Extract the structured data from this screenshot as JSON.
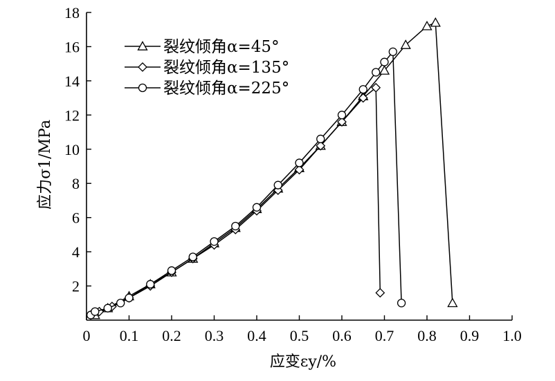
{
  "chart_data": {
    "type": "line",
    "xlabel": "应变εy/%",
    "ylabel": "应力σ1/MPa",
    "xlim": [
      0,
      1.0
    ],
    "ylim": [
      0,
      18
    ],
    "x_ticks": [
      "0",
      "0.1",
      "0.2",
      "0.3",
      "0.4",
      "0.5",
      "0.6",
      "0.7",
      "0.8",
      "0.9",
      "1.0"
    ],
    "y_ticks": [
      "2",
      "4",
      "6",
      "8",
      "10",
      "12",
      "14",
      "16",
      "18"
    ],
    "grid": false,
    "legend_position": "top-left",
    "series": [
      {
        "name": "裂纹倾角α=45°",
        "marker": "triangle",
        "x": [
          0.02,
          0.05,
          0.1,
          0.15,
          0.2,
          0.25,
          0.3,
          0.35,
          0.4,
          0.45,
          0.5,
          0.55,
          0.6,
          0.65,
          0.7,
          0.75,
          0.8,
          0.82,
          0.86
        ],
        "y": [
          0.3,
          0.7,
          1.4,
          2.1,
          2.8,
          3.6,
          4.5,
          5.4,
          6.5,
          7.7,
          8.9,
          10.2,
          11.6,
          13.1,
          14.6,
          16.1,
          17.2,
          17.4,
          1.0
        ]
      },
      {
        "name": "裂纹倾角α=135°",
        "marker": "diamond",
        "x": [
          0.01,
          0.03,
          0.06,
          0.1,
          0.15,
          0.2,
          0.25,
          0.3,
          0.35,
          0.4,
          0.45,
          0.5,
          0.55,
          0.6,
          0.65,
          0.68,
          0.69
        ],
        "y": [
          0.3,
          0.5,
          0.8,
          1.3,
          2.0,
          2.8,
          3.6,
          4.4,
          5.3,
          6.4,
          7.6,
          8.8,
          10.2,
          11.6,
          13.0,
          13.6,
          1.6
        ]
      },
      {
        "name": "裂纹倾角α=225°",
        "marker": "circle",
        "x": [
          0.01,
          0.02,
          0.05,
          0.08,
          0.1,
          0.15,
          0.2,
          0.25,
          0.3,
          0.35,
          0.4,
          0.45,
          0.5,
          0.55,
          0.6,
          0.65,
          0.68,
          0.7,
          0.72,
          0.74
        ],
        "y": [
          0.3,
          0.5,
          0.7,
          1.0,
          1.3,
          2.1,
          2.9,
          3.7,
          4.6,
          5.5,
          6.6,
          7.9,
          9.2,
          10.6,
          12.0,
          13.5,
          14.5,
          15.1,
          15.7,
          1.0
        ]
      }
    ]
  }
}
